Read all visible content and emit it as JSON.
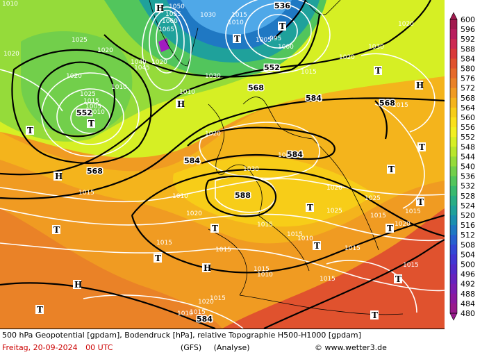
{
  "map": {
    "title_line": "500 hPa Geopotential [gpdam], Bodendruck [hPa], relative Topographie H500-H1000 [gpdam]",
    "date_text": "Freitag, 20-09-2024",
    "time_text": "00 UTC",
    "model_text": "(GFS)",
    "run_type_text": "(Analyse)",
    "credit_text": "www.wetter3.de",
    "colorbar": {
      "unit": "gpdam",
      "ticks": [
        600,
        596,
        592,
        588,
        584,
        580,
        576,
        572,
        568,
        564,
        560,
        556,
        552,
        548,
        544,
        540,
        536,
        532,
        528,
        524,
        520,
        516,
        512,
        508,
        504,
        500,
        496,
        492,
        488,
        484,
        480
      ],
      "colors": [
        "#a11a4e",
        "#b81e5d",
        "#cc2a52",
        "#d93a3a",
        "#e0522e",
        "#e66a2a",
        "#ea8227",
        "#f09b22",
        "#f4b41c",
        "#f7cd18",
        "#fae01a",
        "#f2ef20",
        "#d6ef24",
        "#b8e62c",
        "#95db3a",
        "#72cf4b",
        "#52c55c",
        "#38b96f",
        "#28ad85",
        "#1fa19b",
        "#1b8fb0",
        "#1f78c3",
        "#2860cf",
        "#3448d5",
        "#4236d2",
        "#522ac8",
        "#6622bd",
        "#7a1db0",
        "#8b199f",
        "#981a8c"
      ]
    },
    "geopotential_labels": [
      "536",
      "552",
      "552",
      "568",
      "584",
      "568",
      "584",
      "584",
      "568",
      "588",
      "584"
    ],
    "isobar_labels": [
      "1010",
      "1050",
      "1055",
      "1060",
      "1065",
      "1030",
      "1015",
      "1010",
      "1020",
      "1025",
      "1020",
      "1020",
      "1040",
      "1045",
      "1020",
      "1005",
      "995",
      "1000",
      "1015",
      "1020",
      "1030",
      "1030",
      "1025",
      "1015",
      "1005",
      "1010",
      "1015",
      "1020",
      "1010",
      "1010",
      "1020",
      "1015",
      "1020",
      "1030",
      "1025",
      "1025",
      "1015",
      "1020",
      "1015",
      "1010",
      "1020",
      "1015",
      "1015",
      "1010",
      "1015",
      "1015",
      "1015",
      "1010",
      "1015",
      "1015",
      "1015",
      "1020",
      "1015",
      "1010",
      "1015",
      "1015"
    ],
    "pressure_centers": [
      "H",
      "T",
      "T",
      "T",
      "H",
      "H",
      "T",
      "H",
      "T",
      "T",
      "T",
      "T",
      "T",
      "T",
      "T",
      "T",
      "H",
      "H",
      "T",
      "T",
      "T",
      "T",
      "T"
    ]
  }
}
